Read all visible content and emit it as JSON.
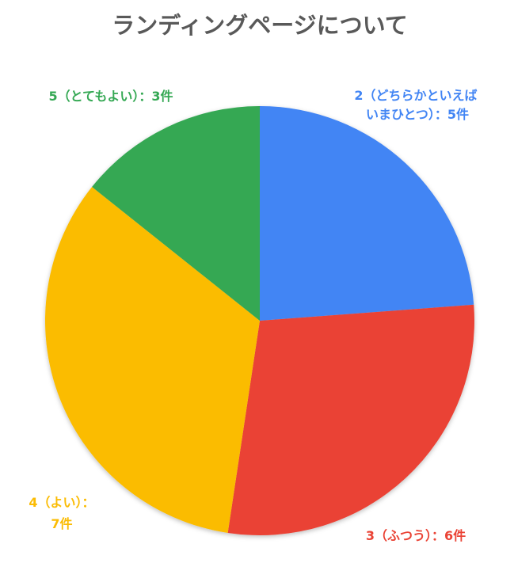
{
  "chart_data": {
    "type": "pie",
    "title": "ランディングページについて",
    "categories": [
      "2（どちらかといえばいまひとつ）",
      "3（ふつう）",
      "4（よい）",
      "5（とてもよい）"
    ],
    "values": [
      5,
      6,
      7,
      3
    ],
    "colors": [
      "#4285f4",
      "#ea4335",
      "#fbbc04",
      "#34a853"
    ],
    "labels": [
      {
        "line1": "2（どちらかといえば",
        "line2": "いまひとつ）：5件"
      },
      {
        "line1": "3（ふつう）：6件",
        "line2": ""
      },
      {
        "line1": "4（よい）：",
        "line2": "7件"
      },
      {
        "line1": "5（とてもよい）：3件",
        "line2": ""
      }
    ],
    "start_angle_deg": 0,
    "direction": "clockwise",
    "legend": "none"
  }
}
